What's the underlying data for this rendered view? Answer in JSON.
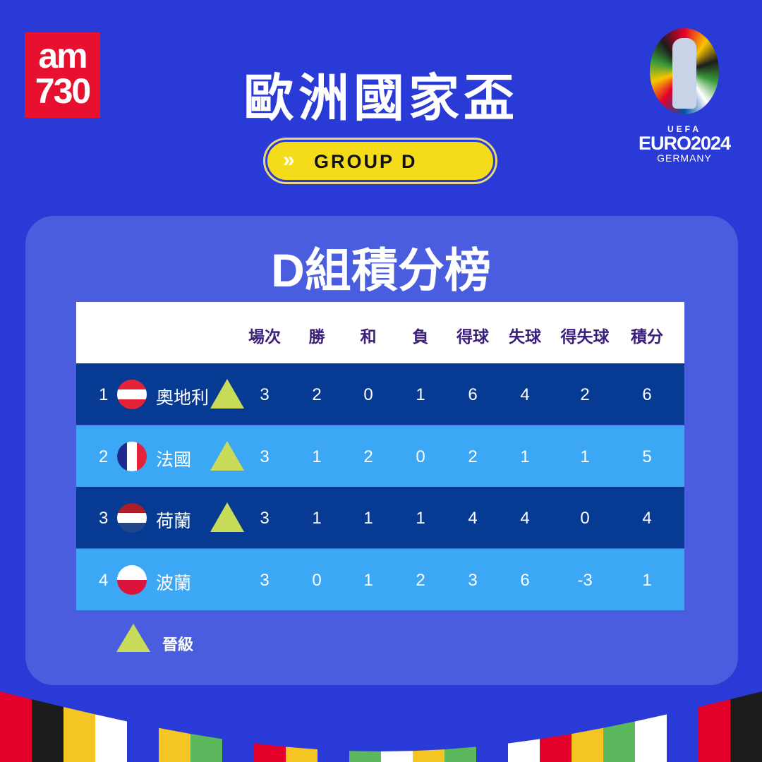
{
  "logo": {
    "line1": "am",
    "line2": "730"
  },
  "header": {
    "title": "歐洲國家盃",
    "group_label": "GROUP D"
  },
  "euro_logo": {
    "uefa": "UEFA",
    "brand": "EURO2024",
    "country": "GERMANY"
  },
  "standings": {
    "title": "D組積分榜",
    "columns": [
      "場次",
      "勝",
      "和",
      "負",
      "得球",
      "失球",
      "得失球",
      "積分"
    ],
    "rows": [
      {
        "rank": "1",
        "team": "奧地利",
        "flag": "austria",
        "qualified": true,
        "stats": [
          "3",
          "2",
          "0",
          "1",
          "6",
          "4",
          "2",
          "6"
        ]
      },
      {
        "rank": "2",
        "team": "法國",
        "flag": "france",
        "qualified": true,
        "stats": [
          "3",
          "1",
          "2",
          "0",
          "2",
          "1",
          "1",
          "5"
        ]
      },
      {
        "rank": "3",
        "team": "荷蘭",
        "flag": "netherlands",
        "qualified": true,
        "stats": [
          "3",
          "1",
          "1",
          "1",
          "4",
          "4",
          "0",
          "4"
        ]
      },
      {
        "rank": "4",
        "team": "波蘭",
        "flag": "poland",
        "qualified": false,
        "stats": [
          "3",
          "0",
          "1",
          "2",
          "3",
          "6",
          "-3",
          "1"
        ]
      }
    ]
  },
  "legend": {
    "label": "晉級",
    "icon": "qualified-triangle-icon",
    "color": "#c8dc5a"
  },
  "colors": {
    "background": "#2a3ad7",
    "panel": "#4a5ddf",
    "row_dark": "#063a93",
    "row_light": "#3ba7f5",
    "header_text": "#3c1f7a",
    "pill": "#f5dc1a",
    "logo_red": "#e8102f"
  }
}
